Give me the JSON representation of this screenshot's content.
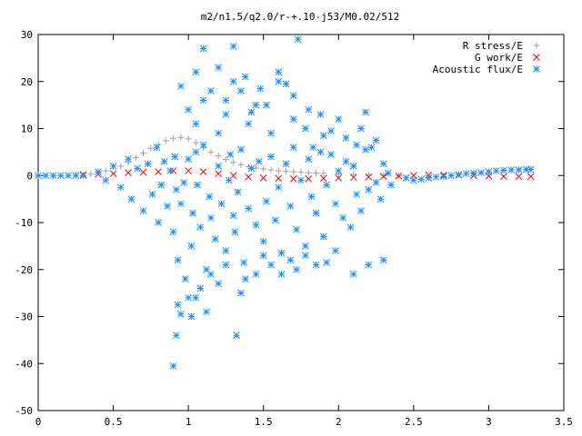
{
  "chart_data": {
    "type": "scatter",
    "title": "m2/n1.5/q2.0/r-+.10-j53/M0.02/512",
    "xlabel": "",
    "ylabel": "",
    "xlim": [
      0,
      3.5
    ],
    "ylim": [
      -50,
      30
    ],
    "x_ticks": [
      "0",
      "0.5",
      "1",
      "1.5",
      "2",
      "2.5",
      "3",
      "3.5"
    ],
    "y_ticks": [
      "30",
      "20",
      "10",
      "0",
      "-10",
      "-20",
      "-30",
      "-40",
      "-50"
    ],
    "grid": false,
    "legend_position": "top-right",
    "series": [
      {
        "name": "R stress/E",
        "marker": "plus",
        "color": "#a0a0a0",
        "x": [
          0.35,
          0.45,
          0.55,
          0.6,
          0.65,
          0.7,
          0.75,
          0.8,
          0.85,
          0.9,
          0.95,
          1.0,
          1.05,
          1.1,
          1.15,
          1.2,
          1.25,
          1.3,
          1.35,
          1.4,
          1.45,
          1.5,
          1.55,
          1.6,
          1.65,
          1.7,
          1.75,
          1.8,
          1.85,
          1.9,
          2.0,
          2.1,
          2.2,
          2.3,
          2.4
        ],
        "y": [
          0.3,
          1.0,
          2.0,
          2.8,
          3.8,
          4.8,
          5.8,
          6.6,
          7.4,
          7.9,
          8.1,
          7.8,
          7.0,
          6.0,
          5.0,
          4.2,
          3.4,
          2.8,
          2.3,
          1.9,
          1.6,
          1.4,
          1.2,
          1.0,
          0.9,
          0.8,
          0.7,
          0.6,
          0.5,
          0.45,
          0.35,
          0.25,
          0.15,
          0.05,
          0.0
        ]
      },
      {
        "name": "G work/E",
        "marker": "cross",
        "color": "#ff0000",
        "x": [
          0.3,
          0.4,
          0.5,
          0.6,
          0.7,
          0.8,
          0.9,
          1.0,
          1.1,
          1.2,
          1.3,
          1.4,
          1.5,
          1.6,
          1.7,
          1.8,
          1.9,
          2.0,
          2.1,
          2.2,
          2.3,
          2.4,
          2.5,
          2.6,
          2.7,
          2.8,
          2.9,
          3.0,
          3.1,
          3.2,
          3.28
        ],
        "y": [
          0.2,
          0.3,
          0.4,
          0.6,
          0.7,
          0.8,
          1.0,
          1.0,
          0.8,
          0.4,
          0.0,
          -0.3,
          -0.5,
          -0.6,
          -0.7,
          -0.7,
          -0.6,
          -0.5,
          -0.4,
          -0.3,
          -0.2,
          -0.1,
          0.0,
          0.1,
          0.1,
          0.1,
          0.0,
          -0.1,
          -0.2,
          -0.2,
          -0.2
        ]
      },
      {
        "name": "Acoustic flux/E",
        "marker": "star",
        "color": "#1e90ff",
        "x": [
          0.0,
          0.05,
          0.1,
          0.15,
          0.2,
          0.25,
          0.3,
          2.45,
          2.5,
          2.55,
          2.6,
          2.65,
          2.7,
          2.75,
          2.8,
          2.85,
          2.9,
          2.95,
          3.0,
          3.05,
          3.1,
          3.15,
          3.2,
          3.25,
          3.28,
          0.4,
          0.45,
          0.5,
          0.55,
          0.6,
          0.62,
          0.66,
          0.7,
          0.73,
          0.76,
          0.79,
          0.8,
          0.82,
          0.84,
          0.86,
          0.88,
          0.9,
          0.91,
          0.92,
          0.93,
          0.95,
          0.97,
          1.0,
          1.02,
          1.03,
          1.05,
          1.06,
          1.08,
          1.1,
          1.12,
          1.14,
          1.15,
          1.18,
          1.2,
          1.22,
          1.25,
          1.27,
          1.28,
          1.3,
          1.31,
          1.33,
          1.35,
          1.37,
          1.4,
          1.42,
          1.45,
          1.47,
          1.5,
          1.52,
          1.55,
          1.58,
          1.6,
          1.62,
          1.65,
          1.68,
          1.7,
          1.72,
          1.75,
          1.78,
          1.8,
          1.82,
          1.85,
          1.88,
          1.9,
          1.92,
          1.95,
          1.98,
          2.0,
          2.03,
          2.05,
          2.08,
          2.1,
          2.12,
          2.15,
          2.18,
          2.2,
          2.22,
          2.25,
          2.28,
          2.3,
          2.33,
          2.35,
          0.95,
          1.0,
          1.05,
          1.1,
          1.2,
          1.25,
          1.3,
          1.35,
          1.4,
          1.45,
          1.55,
          1.6,
          1.65,
          1.7,
          1.73,
          1.78,
          1.83,
          1.88,
          1.95,
          2.05,
          2.12,
          2.18,
          0.92,
          0.95,
          0.98,
          1.02,
          1.05,
          1.08,
          1.12,
          1.15,
          1.2,
          1.25,
          1.32,
          1.35,
          1.38,
          1.45,
          1.5,
          1.55,
          1.62,
          1.68,
          1.72,
          1.78,
          1.85,
          1.92,
          1.98,
          2.1,
          2.2,
          2.3,
          0.9,
          0.93,
          1.0,
          1.05,
          1.1,
          1.15,
          1.2,
          1.25,
          1.3,
          1.38,
          1.42,
          1.48,
          1.52,
          1.6,
          1.7,
          1.8,
          1.9,
          2.0,
          2.15,
          2.25
        ],
        "y": [
          0.0,
          0.0,
          0.0,
          0.0,
          0.0,
          0.0,
          0.0,
          -0.5,
          -1.0,
          -0.8,
          -0.5,
          -0.3,
          -0.2,
          0.0,
          0.2,
          0.4,
          0.5,
          0.6,
          0.8,
          1.0,
          1.1,
          1.2,
          1.2,
          1.3,
          1.3,
          0.8,
          -1.0,
          2.0,
          -2.5,
          3.5,
          -5.0,
          1.5,
          -7.5,
          2.5,
          -4.0,
          6.0,
          -10.0,
          -2.0,
          3.0,
          -6.5,
          1.0,
          -12.0,
          4.0,
          -3.0,
          -18.0,
          -6.0,
          -1.5,
          3.5,
          -15.0,
          -8.0,
          5.0,
          -2.0,
          -11.0,
          6.5,
          -20.0,
          -4.5,
          -9.0,
          -13.5,
          2.0,
          -6.0,
          -16.0,
          -1.0,
          4.5,
          -8.5,
          -12.0,
          -3.5,
          5.5,
          -18.5,
          -7.0,
          1.5,
          -10.5,
          3.0,
          -14.0,
          -5.5,
          4.0,
          -9.5,
          -2.5,
          -16.5,
          2.5,
          -6.5,
          6.0,
          -11.5,
          -1.0,
          -15.0,
          3.5,
          -4.5,
          -8.0,
          5.0,
          -13.0,
          -2.0,
          4.5,
          -6.0,
          1.0,
          -9.0,
          3.0,
          -11.0,
          2.0,
          -4.0,
          -7.5,
          5.5,
          -3.0,
          6.0,
          -1.5,
          -5.0,
          2.5,
          0.5,
          -2.0,
          19.0,
          14.0,
          11.0,
          16.0,
          9.0,
          13.0,
          20.0,
          18.0,
          11.0,
          15.0,
          9.0,
          22.0,
          19.5,
          12.0,
          29.0,
          10.0,
          6.0,
          13.0,
          9.5,
          8.0,
          6.5,
          13.5,
          -34.0,
          -29.5,
          -22.0,
          -30.0,
          -26.0,
          -24.0,
          -29.0,
          -21.0,
          -23.0,
          -19.0,
          -34.0,
          -25.0,
          -22.0,
          -21.0,
          -17.0,
          -19.0,
          -21.0,
          -18.0,
          -20.0,
          -17.0,
          -19.0,
          -18.5,
          -16.0,
          -21.0,
          -19.0,
          -18.0,
          -40.5,
          -27.5,
          -26.0,
          22.0,
          27.0,
          18.0,
          23.0,
          16.0,
          27.5,
          21.0,
          13.5,
          18.5,
          15.0,
          20.0,
          17.0,
          14.0,
          8.5,
          12.0,
          10.0,
          7.5
        ]
      }
    ]
  }
}
